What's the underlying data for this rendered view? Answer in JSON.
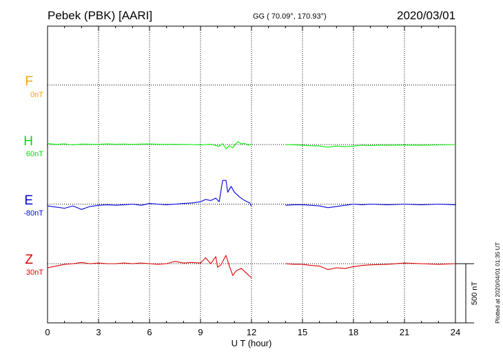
{
  "header": {
    "station": "Pebek (PBK)  [AARI]",
    "coords": "GG ( 70.09°, 170.93°)",
    "date": "2020/03/01"
  },
  "plotted_note": "Plotted at 2020/04/01 01:35 UT",
  "colors": {
    "F": "#f5a400",
    "H": "#00ee00",
    "E": "#0000dd",
    "Z": "#dd0000"
  },
  "chart_data": {
    "type": "line",
    "xlabel": "U T (hour)",
    "xlim": [
      0,
      24
    ],
    "xticks": [
      0,
      3,
      6,
      9,
      12,
      15,
      18,
      21,
      24
    ],
    "grid": true,
    "scale_bar": {
      "label": "500 nT",
      "value_nT": 500
    },
    "channels": [
      {
        "name": "F",
        "offset": "0nT",
        "baseline_level": 3.0,
        "points": []
      },
      {
        "name": "H",
        "offset": "60nT",
        "baseline_level": 2.0,
        "points": [
          [
            0,
            8
          ],
          [
            0.5,
            2
          ],
          [
            1,
            5
          ],
          [
            1.5,
            -3
          ],
          [
            2,
            4
          ],
          [
            2.5,
            3
          ],
          [
            3,
            2
          ],
          [
            3.5,
            5
          ],
          [
            4,
            3
          ],
          [
            4.5,
            4
          ],
          [
            5,
            2
          ],
          [
            5.5,
            4
          ],
          [
            6,
            5
          ],
          [
            6.5,
            3
          ],
          [
            7,
            2
          ],
          [
            7.5,
            3
          ],
          [
            8,
            1
          ],
          [
            8.5,
            0
          ],
          [
            9,
            -2
          ],
          [
            9.3,
            0
          ],
          [
            9.6,
            3
          ],
          [
            9.9,
            -8
          ],
          [
            10.1,
            -15
          ],
          [
            10.3,
            8
          ],
          [
            10.5,
            -35
          ],
          [
            10.7,
            -10
          ],
          [
            10.9,
            -28
          ],
          [
            11,
            -5
          ],
          [
            11.2,
            25
          ],
          [
            11.4,
            5
          ],
          [
            11.6,
            10
          ],
          [
            11.8,
            -5
          ],
          [
            12,
            5
          ],
          [
            null,
            null
          ],
          [
            14,
            0
          ],
          [
            14.5,
            -2
          ],
          [
            15,
            -5
          ],
          [
            15.5,
            -10
          ],
          [
            16,
            -12
          ],
          [
            16.5,
            -22
          ],
          [
            17,
            -12
          ],
          [
            17.5,
            -18
          ],
          [
            18,
            -12
          ],
          [
            18.5,
            -6
          ],
          [
            19,
            -8
          ],
          [
            19.5,
            -4
          ],
          [
            20,
            -6
          ],
          [
            21,
            -4
          ],
          [
            22,
            -5
          ],
          [
            23,
            -3
          ],
          [
            24,
            0
          ]
        ]
      },
      {
        "name": "E",
        "offset": "-80nT",
        "baseline_level": 1.0,
        "points": [
          [
            0,
            -15
          ],
          [
            0.5,
            -25
          ],
          [
            1,
            -35
          ],
          [
            1.5,
            -15
          ],
          [
            2,
            -45
          ],
          [
            2.5,
            -20
          ],
          [
            3,
            -10
          ],
          [
            3.5,
            -5
          ],
          [
            4,
            -10
          ],
          [
            4.5,
            -5
          ],
          [
            5,
            0
          ],
          [
            5.5,
            -10
          ],
          [
            6,
            5
          ],
          [
            6.5,
            0
          ],
          [
            7,
            -5
          ],
          [
            7.5,
            0
          ],
          [
            8,
            5
          ],
          [
            8.5,
            10
          ],
          [
            9,
            20
          ],
          [
            9.3,
            40
          ],
          [
            9.6,
            30
          ],
          [
            9.9,
            50
          ],
          [
            10.1,
            20
          ],
          [
            10.3,
            200
          ],
          [
            10.5,
            200
          ],
          [
            10.6,
            100
          ],
          [
            10.8,
            150
          ],
          [
            11,
            100
          ],
          [
            11.3,
            60
          ],
          [
            11.6,
            30
          ],
          [
            11.9,
            10
          ],
          [
            12,
            -20
          ],
          [
            null,
            null
          ],
          [
            14,
            -10
          ],
          [
            14.5,
            -5
          ],
          [
            15,
            -5
          ],
          [
            15.5,
            -10
          ],
          [
            16,
            -15
          ],
          [
            16.5,
            -30
          ],
          [
            17,
            -20
          ],
          [
            17.5,
            -10
          ],
          [
            18,
            0
          ],
          [
            18.5,
            -5
          ],
          [
            19,
            0
          ],
          [
            20,
            -5
          ],
          [
            21,
            0
          ],
          [
            22,
            -5
          ],
          [
            23,
            0
          ],
          [
            24,
            -5
          ]
        ]
      },
      {
        "name": "Z",
        "offset": "30nT",
        "baseline_level": 0.0,
        "points": [
          [
            0,
            -35
          ],
          [
            0.5,
            -20
          ],
          [
            1,
            -5
          ],
          [
            1.5,
            0
          ],
          [
            2,
            10
          ],
          [
            2.5,
            0
          ],
          [
            3,
            5
          ],
          [
            3.5,
            0
          ],
          [
            4,
            0
          ],
          [
            4.5,
            5
          ],
          [
            5,
            0
          ],
          [
            5.5,
            5
          ],
          [
            6,
            0
          ],
          [
            6.5,
            -5
          ],
          [
            7,
            0
          ],
          [
            7.5,
            20
          ],
          [
            8,
            5
          ],
          [
            8.5,
            10
          ],
          [
            9,
            5
          ],
          [
            9.3,
            50
          ],
          [
            9.6,
            0
          ],
          [
            9.9,
            60
          ],
          [
            10,
            -30
          ],
          [
            10.2,
            -10
          ],
          [
            10.5,
            70
          ],
          [
            10.7,
            -20
          ],
          [
            10.9,
            -100
          ],
          [
            11.1,
            -60
          ],
          [
            11.4,
            -40
          ],
          [
            11.7,
            -80
          ],
          [
            12,
            -120
          ],
          [
            null,
            null
          ],
          [
            14,
            0
          ],
          [
            14.5,
            -5
          ],
          [
            15,
            -5
          ],
          [
            15.5,
            -15
          ],
          [
            16,
            -20
          ],
          [
            16.5,
            -50
          ],
          [
            17,
            -35
          ],
          [
            17.5,
            -40
          ],
          [
            18,
            -25
          ],
          [
            18.5,
            -15
          ],
          [
            19,
            -10
          ],
          [
            20,
            -5
          ],
          [
            21,
            5
          ],
          [
            22,
            0
          ],
          [
            23,
            -5
          ],
          [
            24,
            0
          ]
        ]
      }
    ]
  }
}
